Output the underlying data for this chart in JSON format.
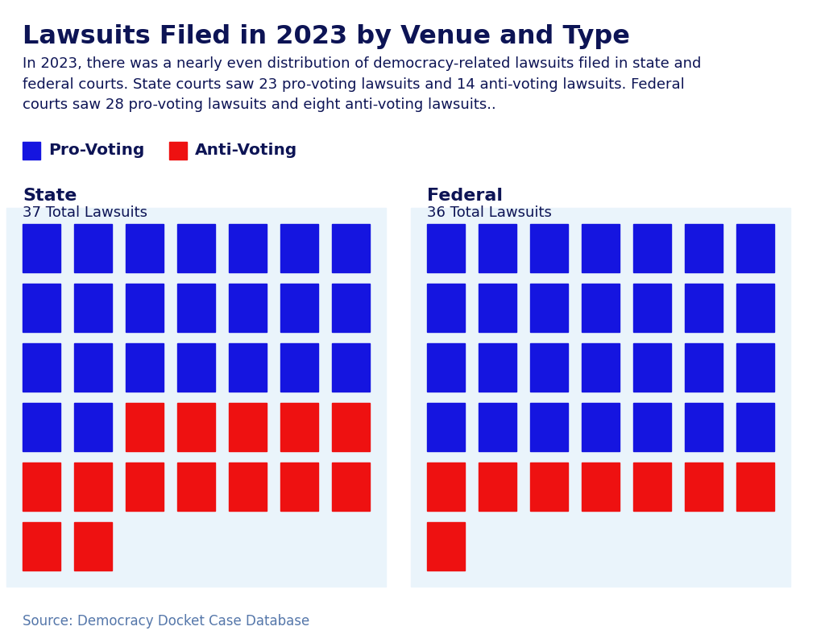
{
  "title": "Lawsuits Filed in 2023 by Venue and Type",
  "subtitle": "In 2023, there was a nearly even distribution of democracy-related lawsuits filed in state and\nfederal courts. State courts saw 23 pro-voting lawsuits and 14 anti-voting lawsuits. Federal\ncourts saw 28 pro-voting lawsuits and eight anti-voting lawsuits..",
  "legend_pro": "Pro-Voting",
  "legend_anti": "Anti-Voting",
  "source": "Source: Democracy Docket Case Database",
  "pro_color": "#1515E0",
  "anti_color": "#EE1111",
  "bg_color": "#EAF4FB",
  "title_color": "#0D1455",
  "source_color": "#5577AA",
  "state_label": "State",
  "state_total": "37 Total Lawsuits",
  "federal_label": "Federal",
  "federal_total": "36 Total Lawsuits",
  "cols": 7,
  "state_sequence": [
    "B",
    "B",
    "B",
    "B",
    "B",
    "B",
    "B",
    "B",
    "B",
    "B",
    "B",
    "B",
    "B",
    "B",
    "B",
    "B",
    "B",
    "B",
    "B",
    "B",
    "B",
    "B",
    "B",
    "R",
    "R",
    "R",
    "R",
    "R",
    "R",
    "R",
    "R",
    "R",
    "R",
    "R",
    "R",
    "R",
    "R"
  ],
  "federal_sequence": [
    "B",
    "B",
    "B",
    "B",
    "B",
    "B",
    "B",
    "B",
    "B",
    "B",
    "B",
    "B",
    "B",
    "B",
    "B",
    "B",
    "B",
    "B",
    "B",
    "B",
    "B",
    "B",
    "B",
    "B",
    "B",
    "B",
    "B",
    "B",
    "R",
    "R",
    "R",
    "R",
    "R",
    "R",
    "R",
    "R"
  ]
}
